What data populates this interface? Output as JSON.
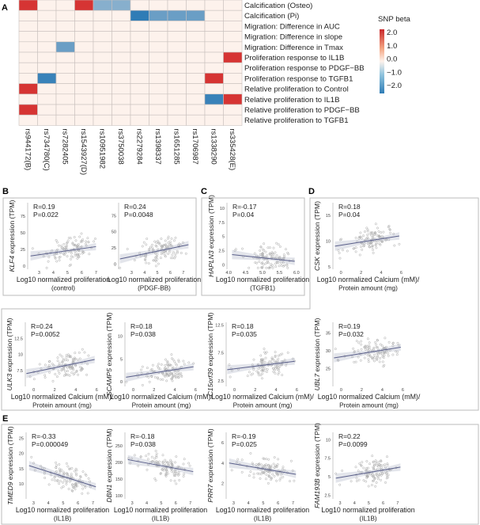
{
  "panels": {
    "a": "A",
    "b": "B",
    "c": "C",
    "d": "D",
    "e": "E"
  },
  "chart_data": [
    {
      "type": "heatmap",
      "panel": "A",
      "legend_title": "SNP beta",
      "legend_ticks": [
        "2.0",
        "1.0",
        "0.0",
        "−1.0",
        "−2.0"
      ],
      "legend_range": [
        -2.2,
        2.2
      ],
      "legend_placement": "right",
      "colors": {
        "high": "#d42a2a",
        "mid": "#fdf2ec",
        "low": "#2f7cb6"
      },
      "columns": [
        "rs944172(B)",
        "rs734780(C)",
        "rs7282405",
        "rs1543927(D)",
        "rs10951982",
        "rs3750038",
        "rs2279284",
        "rs1398337",
        "rs1651285",
        "rs1706987",
        "rs1338290",
        "rs335428(E)"
      ],
      "rows": [
        "Calcification (Osteo)",
        "Calcification (Pi)",
        "Migration: Difference in AUC",
        "Migration: Difference in slope",
        "Migration: Difference in Tmax",
        "Proliferation response to IL1B",
        "Proliferation response to PDGF−BB",
        "Proliferation response to TGFB1",
        "Relative proliferation to Control",
        "Relative proliferation to IL1B",
        "Relative proliferation to PDGF−BB",
        "Relative proliferation to TGFB1"
      ],
      "values": [
        [
          2.0,
          0,
          0,
          2.0,
          -1.2,
          -1.2,
          0,
          0,
          0,
          0,
          0,
          0
        ],
        [
          0,
          0,
          0,
          0,
          0,
          0,
          -2.2,
          -1.5,
          -1.5,
          -1.5,
          0,
          0
        ],
        [
          0,
          0,
          0,
          0,
          0,
          0,
          0,
          0,
          0,
          0,
          0,
          0
        ],
        [
          0,
          0,
          0,
          0,
          0,
          0,
          0,
          0,
          0,
          0,
          0,
          0
        ],
        [
          0,
          0,
          -1.5,
          0,
          0,
          0,
          0,
          0,
          0,
          0,
          0,
          0
        ],
        [
          0,
          0,
          0,
          0,
          0,
          0,
          0,
          0,
          0,
          0,
          0,
          2.0
        ],
        [
          0,
          0,
          0,
          0,
          0,
          0,
          0,
          0,
          0,
          0,
          0,
          0
        ],
        [
          0,
          -2.0,
          0,
          0,
          0,
          0,
          0,
          0,
          0,
          0,
          2.0,
          0
        ],
        [
          2.0,
          0,
          0,
          0,
          0,
          0,
          0,
          0,
          0,
          0,
          0,
          0
        ],
        [
          0,
          0,
          0,
          0,
          0,
          0,
          0,
          0,
          0,
          0,
          -2.0,
          2.0
        ],
        [
          2.0,
          0,
          0,
          0,
          0,
          0,
          0,
          0,
          0,
          0,
          0,
          0
        ],
        [
          0,
          0,
          0,
          0,
          0,
          0,
          0,
          0,
          0,
          0,
          0,
          0
        ]
      ]
    },
    {
      "type": "scatter",
      "panel": "B",
      "gene": "KLF4",
      "ylabel_rest": " expression (TPM)",
      "xlabel": [
        "Log10 normalized proliferation",
        "(control)"
      ],
      "r": "R=0.19",
      "p": "P=0.022",
      "xlim": [
        2.2,
        7.2
      ],
      "ylim": [
        -5,
        95
      ],
      "xticks": [
        "3",
        "4",
        "5",
        "6",
        "7"
      ],
      "yticks": [
        "0",
        "25",
        "50",
        "75"
      ],
      "fit": {
        "x": [
          2.4,
          7.0
        ],
        "y": [
          15,
          29
        ]
      }
    },
    {
      "type": "scatter",
      "panel": "B",
      "gene": "",
      "ylabel_rest": "",
      "xlabel": [
        "Log10 normalized proliferation",
        "(PDGF-BB)"
      ],
      "r": "R=0.24",
      "p": "P=0.0048",
      "xlim": [
        2.0,
        7.5
      ],
      "ylim": [
        -8,
        95
      ],
      "xticks": [
        "3",
        "4",
        "5",
        "6",
        "7"
      ],
      "yticks": [
        "0",
        "25",
        "50",
        "75"
      ],
      "fit": {
        "x": [
          2.1,
          7.4
        ],
        "y": [
          8,
          30
        ]
      }
    },
    {
      "type": "scatter",
      "panel": "C",
      "gene": "HAPLN3",
      "ylabel_rest": " expression (TPM)",
      "xlabel": [
        "Log10 normalized proliferation",
        "(TGFB1)"
      ],
      "r": "R=-0.17",
      "p": "P=0.04",
      "xlim": [
        3.95,
        6.05
      ],
      "ylim": [
        -0.8,
        11
      ],
      "xticks": [
        "4.0",
        "4.5",
        "5.0",
        "5.5",
        "6.0"
      ],
      "yticks": [
        "0",
        "2.5",
        "5",
        "7.5",
        "10"
      ],
      "fit": {
        "x": [
          4.1,
          5.95
        ],
        "y": [
          1.8,
          0.6
        ]
      }
    },
    {
      "type": "scatter",
      "panel": "D",
      "gene": "CSK",
      "ylabel_rest": " expression (TPM)",
      "xlabel": [
        "Log10 normalized Calcium (mM)/",
        "Protein amount (mg)"
      ],
      "r": "R=0.18",
      "p": "P=0.04",
      "xlim": [
        -0.8,
        6.2
      ],
      "ylim": [
        4.5,
        17.5
      ],
      "xticks": [
        "0",
        "2",
        "4",
        "6"
      ],
      "yticks": [
        "5",
        "10",
        "15"
      ],
      "fit": {
        "x": [
          -0.6,
          5.8
        ],
        "y": [
          9,
          11
        ]
      }
    },
    {
      "type": "scatter",
      "panel": "D",
      "gene": "ULK3",
      "ylabel_rest": " expression (TPM)",
      "xlabel": [
        "Log10 normalized Calcium (mM)/",
        "Protein amount (mg)"
      ],
      "r": "R=0.24",
      "p": "P=0.0052",
      "xlim": [
        -0.8,
        6.2
      ],
      "ylim": [
        5,
        15
      ],
      "xticks": [
        "0",
        "2",
        "4",
        "6"
      ],
      "yticks": [
        "7.5",
        "10",
        "12.5"
      ],
      "fit": {
        "x": [
          -0.7,
          5.8
        ],
        "y": [
          7,
          9.2
        ]
      }
    },
    {
      "type": "scatter",
      "panel": "D",
      "gene": "SCAMP5",
      "ylabel_rest": " expression (TPM)",
      "xlabel": [
        "Log10 normalized Calcium (mM)/",
        "Protein amount (mg)"
      ],
      "r": "R=0.18",
      "p": "P=0.038",
      "xlim": [
        -0.8,
        6.2
      ],
      "ylim": [
        -1,
        13
      ],
      "xticks": [
        "0",
        "2",
        "4",
        "6"
      ],
      "yticks": [
        "0",
        "5",
        "10"
      ],
      "fit": {
        "x": [
          -0.7,
          5.8
        ],
        "y": [
          1,
          3.3
        ]
      }
    },
    {
      "type": "scatter",
      "panel": "D",
      "gene": "C15orf39",
      "ylabel_rest": " expression (TPM)",
      "xlabel": [
        "Log10 normalized Calcium (mM)/",
        "Protein amount (mg)"
      ],
      "r": "R=0.18",
      "p": "P=0.035",
      "xlim": [
        -0.8,
        6.2
      ],
      "ylim": [
        1.5,
        13
      ],
      "xticks": [
        "0",
        "2",
        "4",
        "6"
      ],
      "yticks": [
        "2.5",
        "7.5",
        "12.5"
      ],
      "fit": {
        "x": [
          -0.7,
          5.8
        ],
        "y": [
          4.5,
          6
        ]
      }
    },
    {
      "type": "scatter",
      "panel": "D",
      "gene": "UBL7",
      "ylabel_rest": " expression (TPM)",
      "xlabel": [
        "Log10 normalized Calcium (mM)/",
        "Protein amount (mg)"
      ],
      "r": "R=0.19",
      "p": "P=0.032",
      "xlim": [
        -0.8,
        6.2
      ],
      "ylim": [
        20,
        38
      ],
      "xticks": [
        "0",
        "2",
        "4",
        "6"
      ],
      "yticks": [
        "25",
        "30",
        "35"
      ],
      "fit": {
        "x": [
          -0.7,
          5.8
        ],
        "y": [
          28,
          31
        ]
      }
    },
    {
      "type": "scatter",
      "panel": "E",
      "gene": "TMED9",
      "ylabel_rest": " expression (TPM)",
      "xlabel": [
        "Log10 normalized proliferation",
        "(IL1B)"
      ],
      "r": "R=-0.33",
      "p": "P=0.000049",
      "xlim": [
        2.5,
        7.4
      ],
      "ylim": [
        5,
        27
      ],
      "xticks": [
        "3",
        "4",
        "5",
        "6",
        "7"
      ],
      "yticks": [
        "10",
        "15",
        "20",
        "25"
      ],
      "fit": {
        "x": [
          2.7,
          7.2
        ],
        "y": [
          16,
          9
        ]
      }
    },
    {
      "type": "scatter",
      "panel": "E",
      "gene": "DBN1",
      "ylabel_rest": " expression (TPM)",
      "xlabel": [
        "Log10 normalized proliferation",
        "(IL1B)"
      ],
      "r": "R=-0.18",
      "p": "P=0.038",
      "xlim": [
        2.5,
        7.4
      ],
      "ylim": [
        90,
        290
      ],
      "xticks": [
        "3",
        "4",
        "5",
        "6",
        "7"
      ],
      "yticks": [
        "100",
        "150",
        "200",
        "250"
      ],
      "fit": {
        "x": [
          2.7,
          7.2
        ],
        "y": [
          208,
          172
        ]
      }
    },
    {
      "type": "scatter",
      "panel": "E",
      "gene": "PRR7",
      "ylabel_rest": " expression (TPM)",
      "xlabel": [
        "Log10 normalized proliferation",
        "(IL1B)"
      ],
      "r": "R=-0.19",
      "p": "P=0.025",
      "xlim": [
        2.5,
        7.4
      ],
      "ylim": [
        0.5,
        7
      ],
      "xticks": [
        "3",
        "4",
        "5",
        "6",
        "7"
      ],
      "yticks": [
        "2",
        "4",
        "6"
      ],
      "fit": {
        "x": [
          2.7,
          7.2
        ],
        "y": [
          4,
          2.9
        ]
      }
    },
    {
      "type": "scatter",
      "panel": "E",
      "gene": "FAM193B",
      "ylabel_rest": " expression (TPM)",
      "xlabel": [
        "Log10 normalized proliferation",
        "(IL1B)"
      ],
      "r": "R=0.22",
      "p": "P=0.0099",
      "xlim": [
        2.5,
        7.4
      ],
      "ylim": [
        2,
        11
      ],
      "xticks": [
        "3",
        "4",
        "5",
        "6",
        "7"
      ],
      "yticks": [
        "2.5",
        "5",
        "7.5",
        "10"
      ],
      "fit": {
        "x": [
          2.7,
          7.2
        ],
        "y": [
          4.8,
          6.3
        ]
      }
    }
  ]
}
